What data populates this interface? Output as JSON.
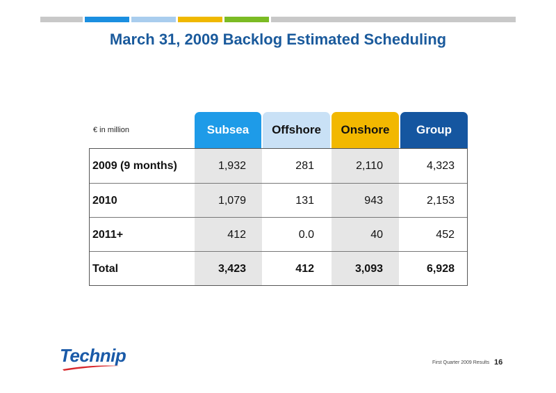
{
  "title": "March 31, 2009 Backlog Estimated Scheduling",
  "top_bar_colors": [
    "#c8c8c8",
    "#1b8fe0",
    "#a9cdee",
    "#f0b800",
    "#7bbb24",
    "#c8c8c8"
  ],
  "unit_label": "€ in million",
  "columns": [
    {
      "label": "Subsea",
      "bg": "#1e9be8",
      "fg": "#ffffff"
    },
    {
      "label": "Offshore",
      "bg": "#c9e1f6",
      "fg": "#111111"
    },
    {
      "label": "Onshore",
      "bg": "#f2b800",
      "fg": "#111111"
    },
    {
      "label": "Group",
      "bg": "#1556a0",
      "fg": "#ffffff"
    }
  ],
  "rows": [
    {
      "label": "2009 (9 months)",
      "values": [
        "1,932",
        "281",
        "2,110",
        "4,323"
      ],
      "bold": false
    },
    {
      "label": "2010",
      "values": [
        "1,079",
        "131",
        "943",
        "2,153"
      ],
      "bold": false
    },
    {
      "label": "2011+",
      "values": [
        "412",
        "0.0",
        "40",
        "452"
      ],
      "bold": false
    },
    {
      "label": "Total",
      "values": [
        "3,423",
        "412",
        "3,093",
        "6,928"
      ],
      "bold": true
    }
  ],
  "logo_text": "Technip",
  "footer_text": "First Quarter 2009 Results",
  "page_number": "16"
}
